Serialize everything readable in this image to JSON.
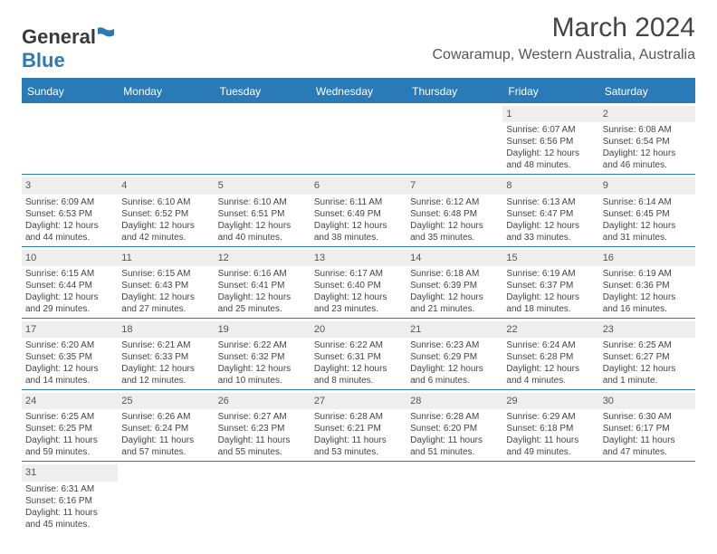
{
  "logo": {
    "general": "General",
    "blue": "Blue"
  },
  "title": "March 2024",
  "location": "Cowaramup, Western Australia, Australia",
  "day_headers": [
    "Sunday",
    "Monday",
    "Tuesday",
    "Wednesday",
    "Thursday",
    "Friday",
    "Saturday"
  ],
  "colors": {
    "header_bg": "#2a7ab8",
    "daynum_bg": "#eeeeee",
    "border": "#2a7ab8"
  },
  "weeks": [
    [
      null,
      null,
      null,
      null,
      null,
      {
        "n": "1",
        "sr": "Sunrise: 6:07 AM",
        "ss": "Sunset: 6:56 PM",
        "d1": "Daylight: 12 hours",
        "d2": "and 48 minutes."
      },
      {
        "n": "2",
        "sr": "Sunrise: 6:08 AM",
        "ss": "Sunset: 6:54 PM",
        "d1": "Daylight: 12 hours",
        "d2": "and 46 minutes."
      }
    ],
    [
      {
        "n": "3",
        "sr": "Sunrise: 6:09 AM",
        "ss": "Sunset: 6:53 PM",
        "d1": "Daylight: 12 hours",
        "d2": "and 44 minutes."
      },
      {
        "n": "4",
        "sr": "Sunrise: 6:10 AM",
        "ss": "Sunset: 6:52 PM",
        "d1": "Daylight: 12 hours",
        "d2": "and 42 minutes."
      },
      {
        "n": "5",
        "sr": "Sunrise: 6:10 AM",
        "ss": "Sunset: 6:51 PM",
        "d1": "Daylight: 12 hours",
        "d2": "and 40 minutes."
      },
      {
        "n": "6",
        "sr": "Sunrise: 6:11 AM",
        "ss": "Sunset: 6:49 PM",
        "d1": "Daylight: 12 hours",
        "d2": "and 38 minutes."
      },
      {
        "n": "7",
        "sr": "Sunrise: 6:12 AM",
        "ss": "Sunset: 6:48 PM",
        "d1": "Daylight: 12 hours",
        "d2": "and 35 minutes."
      },
      {
        "n": "8",
        "sr": "Sunrise: 6:13 AM",
        "ss": "Sunset: 6:47 PM",
        "d1": "Daylight: 12 hours",
        "d2": "and 33 minutes."
      },
      {
        "n": "9",
        "sr": "Sunrise: 6:14 AM",
        "ss": "Sunset: 6:45 PM",
        "d1": "Daylight: 12 hours",
        "d2": "and 31 minutes."
      }
    ],
    [
      {
        "n": "10",
        "sr": "Sunrise: 6:15 AM",
        "ss": "Sunset: 6:44 PM",
        "d1": "Daylight: 12 hours",
        "d2": "and 29 minutes."
      },
      {
        "n": "11",
        "sr": "Sunrise: 6:15 AM",
        "ss": "Sunset: 6:43 PM",
        "d1": "Daylight: 12 hours",
        "d2": "and 27 minutes."
      },
      {
        "n": "12",
        "sr": "Sunrise: 6:16 AM",
        "ss": "Sunset: 6:41 PM",
        "d1": "Daylight: 12 hours",
        "d2": "and 25 minutes."
      },
      {
        "n": "13",
        "sr": "Sunrise: 6:17 AM",
        "ss": "Sunset: 6:40 PM",
        "d1": "Daylight: 12 hours",
        "d2": "and 23 minutes."
      },
      {
        "n": "14",
        "sr": "Sunrise: 6:18 AM",
        "ss": "Sunset: 6:39 PM",
        "d1": "Daylight: 12 hours",
        "d2": "and 21 minutes."
      },
      {
        "n": "15",
        "sr": "Sunrise: 6:19 AM",
        "ss": "Sunset: 6:37 PM",
        "d1": "Daylight: 12 hours",
        "d2": "and 18 minutes."
      },
      {
        "n": "16",
        "sr": "Sunrise: 6:19 AM",
        "ss": "Sunset: 6:36 PM",
        "d1": "Daylight: 12 hours",
        "d2": "and 16 minutes."
      }
    ],
    [
      {
        "n": "17",
        "sr": "Sunrise: 6:20 AM",
        "ss": "Sunset: 6:35 PM",
        "d1": "Daylight: 12 hours",
        "d2": "and 14 minutes."
      },
      {
        "n": "18",
        "sr": "Sunrise: 6:21 AM",
        "ss": "Sunset: 6:33 PM",
        "d1": "Daylight: 12 hours",
        "d2": "and 12 minutes."
      },
      {
        "n": "19",
        "sr": "Sunrise: 6:22 AM",
        "ss": "Sunset: 6:32 PM",
        "d1": "Daylight: 12 hours",
        "d2": "and 10 minutes."
      },
      {
        "n": "20",
        "sr": "Sunrise: 6:22 AM",
        "ss": "Sunset: 6:31 PM",
        "d1": "Daylight: 12 hours",
        "d2": "and 8 minutes."
      },
      {
        "n": "21",
        "sr": "Sunrise: 6:23 AM",
        "ss": "Sunset: 6:29 PM",
        "d1": "Daylight: 12 hours",
        "d2": "and 6 minutes."
      },
      {
        "n": "22",
        "sr": "Sunrise: 6:24 AM",
        "ss": "Sunset: 6:28 PM",
        "d1": "Daylight: 12 hours",
        "d2": "and 4 minutes."
      },
      {
        "n": "23",
        "sr": "Sunrise: 6:25 AM",
        "ss": "Sunset: 6:27 PM",
        "d1": "Daylight: 12 hours",
        "d2": "and 1 minute."
      }
    ],
    [
      {
        "n": "24",
        "sr": "Sunrise: 6:25 AM",
        "ss": "Sunset: 6:25 PM",
        "d1": "Daylight: 11 hours",
        "d2": "and 59 minutes."
      },
      {
        "n": "25",
        "sr": "Sunrise: 6:26 AM",
        "ss": "Sunset: 6:24 PM",
        "d1": "Daylight: 11 hours",
        "d2": "and 57 minutes."
      },
      {
        "n": "26",
        "sr": "Sunrise: 6:27 AM",
        "ss": "Sunset: 6:23 PM",
        "d1": "Daylight: 11 hours",
        "d2": "and 55 minutes."
      },
      {
        "n": "27",
        "sr": "Sunrise: 6:28 AM",
        "ss": "Sunset: 6:21 PM",
        "d1": "Daylight: 11 hours",
        "d2": "and 53 minutes."
      },
      {
        "n": "28",
        "sr": "Sunrise: 6:28 AM",
        "ss": "Sunset: 6:20 PM",
        "d1": "Daylight: 11 hours",
        "d2": "and 51 minutes."
      },
      {
        "n": "29",
        "sr": "Sunrise: 6:29 AM",
        "ss": "Sunset: 6:18 PM",
        "d1": "Daylight: 11 hours",
        "d2": "and 49 minutes."
      },
      {
        "n": "30",
        "sr": "Sunrise: 6:30 AM",
        "ss": "Sunset: 6:17 PM",
        "d1": "Daylight: 11 hours",
        "d2": "and 47 minutes."
      }
    ],
    [
      {
        "n": "31",
        "sr": "Sunrise: 6:31 AM",
        "ss": "Sunset: 6:16 PM",
        "d1": "Daylight: 11 hours",
        "d2": "and 45 minutes."
      },
      null,
      null,
      null,
      null,
      null,
      null
    ]
  ]
}
